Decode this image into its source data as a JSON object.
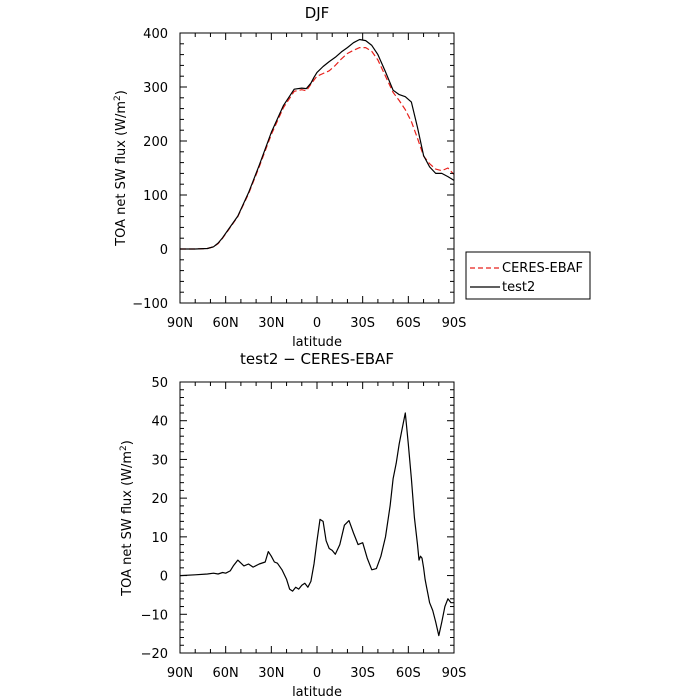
{
  "chart_data": [
    {
      "type": "line",
      "title": "DJF",
      "xlabel": "latitude",
      "ylabel": "TOA net SW flux (W/m²)",
      "ylabel_base": "TOA net SW flux (W/m",
      "ylabel_sup": "2",
      "ylabel_end": ")",
      "xlim": [
        90,
        -90
      ],
      "ylim": [
        -100,
        400
      ],
      "xticks": [
        90,
        60,
        30,
        0,
        -30,
        -60,
        -90
      ],
      "xtick_labels": [
        "90N",
        "60N",
        "30N",
        "0",
        "30S",
        "60S",
        "90S"
      ],
      "yticks": [
        -100,
        0,
        100,
        200,
        300,
        400
      ],
      "ytick_labels": [
        "−100",
        "0",
        "100",
        "200",
        "300",
        "400"
      ],
      "legend_placement": "outside-right",
      "series": [
        {
          "name": "CERES-EBAF",
          "color": "#e8211c",
          "dash": "dashed",
          "x": [
            90,
            80,
            72,
            68,
            65,
            62,
            58,
            52,
            45,
            38,
            30,
            22,
            15,
            10,
            7,
            4,
            2,
            0,
            -4,
            -8,
            -12,
            -16,
            -20,
            -24,
            -28,
            -32,
            -36,
            -40,
            -45,
            -50,
            -54,
            -58,
            -62,
            -66,
            -70,
            -74,
            -78,
            -82,
            -86,
            -90
          ],
          "y": [
            0,
            0,
            1,
            4,
            10,
            20,
            36,
            60,
            102,
            152,
            212,
            262,
            292,
            295,
            293,
            305,
            313,
            320,
            325,
            330,
            340,
            352,
            362,
            368,
            373,
            373,
            366,
            350,
            320,
            290,
            275,
            258,
            236,
            205,
            172,
            158,
            148,
            145,
            150,
            138
          ]
        },
        {
          "name": "test2",
          "color": "#000000",
          "dash": "solid",
          "x": [
            90,
            80,
            72,
            68,
            65,
            62,
            58,
            52,
            45,
            38,
            30,
            22,
            15,
            10,
            7,
            4,
            2,
            0,
            -4,
            -8,
            -12,
            -16,
            -20,
            -24,
            -28,
            -32,
            -36,
            -40,
            -45,
            -50,
            -54,
            -58,
            -62,
            -66,
            -70,
            -74,
            -78,
            -82,
            -86,
            -90
          ],
          "y": [
            0,
            0,
            1,
            4,
            11,
            21,
            37,
            61,
            104,
            155,
            216,
            266,
            296,
            298,
            297,
            307,
            318,
            327,
            338,
            347,
            355,
            365,
            373,
            382,
            388,
            386,
            377,
            360,
            328,
            294,
            286,
            282,
            272,
            225,
            173,
            152,
            140,
            140,
            134,
            127
          ]
        }
      ]
    },
    {
      "type": "line",
      "title": "test2 − CERES-EBAF",
      "xlabel": "latitude",
      "ylabel": "TOA net SW flux (W/m²)",
      "ylabel_base": "TOA net SW flux (W/m",
      "ylabel_sup": "2",
      "ylabel_end": ")",
      "xlim": [
        90,
        -90
      ],
      "ylim": [
        -20,
        50
      ],
      "xticks": [
        90,
        60,
        30,
        0,
        -30,
        -60,
        -90
      ],
      "xtick_labels": [
        "90N",
        "60N",
        "30N",
        "0",
        "30S",
        "60S",
        "90S"
      ],
      "yticks": [
        -20,
        -10,
        0,
        10,
        20,
        30,
        40,
        50
      ],
      "ytick_labels": [
        "−20",
        "−10",
        "0",
        "10",
        "20",
        "30",
        "40",
        "50"
      ],
      "series": [
        {
          "color": "#000000",
          "dash": "solid",
          "x": [
            90,
            80,
            72,
            68,
            65,
            62,
            60,
            57,
            55,
            52,
            48,
            45,
            42,
            38,
            34,
            32,
            30,
            28,
            26,
            23,
            20,
            18,
            16,
            14,
            12,
            10,
            8,
            6,
            4,
            2,
            0,
            -2,
            -4,
            -6,
            -8,
            -10,
            -12,
            -15,
            -18,
            -21,
            -24,
            -27,
            -30,
            -33,
            -36,
            -39,
            -42,
            -45,
            -48,
            -50,
            -52,
            -54,
            -56,
            -58,
            -60,
            -62,
            -64,
            -66,
            -67,
            -68,
            -69,
            -70,
            -71,
            -72,
            -73,
            -74,
            -76,
            -78,
            -80,
            -82,
            -84,
            -86,
            -88,
            -90
          ],
          "y": [
            0,
            0.2,
            0.4,
            0.6,
            0.4,
            0.8,
            0.6,
            1.2,
            2.5,
            4.0,
            2.5,
            3.0,
            2.2,
            3.0,
            3.5,
            6.2,
            5.0,
            3.5,
            3.2,
            1.5,
            -1.0,
            -3.5,
            -4.0,
            -3.0,
            -3.5,
            -2.5,
            -2.0,
            -3.0,
            -1.5,
            3.0,
            9.0,
            14.5,
            14.0,
            9.0,
            7.0,
            6.5,
            5.5,
            8.0,
            13.0,
            14.2,
            11.0,
            8.0,
            8.5,
            4.5,
            1.5,
            1.8,
            5.0,
            10.0,
            18.0,
            25.0,
            29.0,
            34.0,
            38.0,
            42.0,
            34.0,
            25.0,
            15.0,
            8.0,
            4.0,
            5.0,
            4.5,
            2.0,
            -1.0,
            -3.0,
            -5.0,
            -7.0,
            -9.0,
            -12.0,
            -15.5,
            -12.0,
            -8.0,
            -6.0,
            -7.0,
            -7.0
          ]
        }
      ]
    }
  ]
}
